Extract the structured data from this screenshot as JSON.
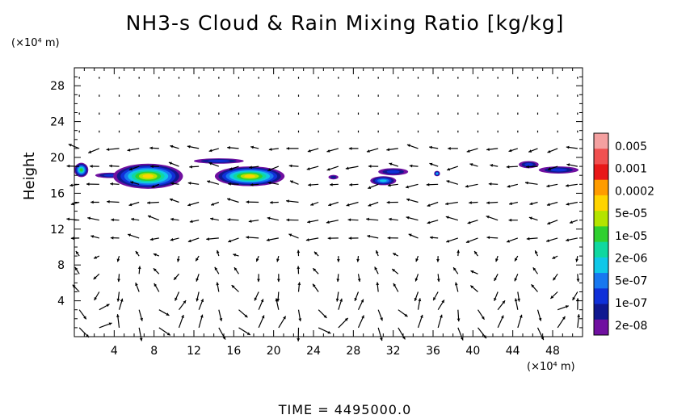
{
  "chart_data": {
    "type": "heatmap",
    "title": "NH3-s Cloud & Rain Mixing Ratio [kg/kg]",
    "ylabel": "Height",
    "y_unit": "(×10⁴ m)",
    "x_unit": "(×10⁴ m)",
    "xlim": [
      0,
      51
    ],
    "ylim": [
      0,
      30
    ],
    "x_ticks": [
      4,
      8,
      12,
      16,
      20,
      24,
      28,
      32,
      36,
      40,
      44,
      48
    ],
    "y_ticks": [
      4,
      8,
      12,
      16,
      20,
      24,
      28
    ],
    "colorbar": {
      "labels": [
        "0.005",
        "0.001",
        "0.0002",
        "5e-05",
        "1e-05",
        "2e-06",
        "5e-07",
        "1e-07",
        "2e-08"
      ],
      "colors": [
        "#f4a0a0",
        "#f05050",
        "#e81818",
        "#ff9c00",
        "#ffd400",
        "#b4e400",
        "#30d030",
        "#10d8a0",
        "#10c8e8",
        "#1878f0",
        "#1030d8",
        "#101890",
        "#7010a0"
      ]
    },
    "cloud_patches": [
      {
        "x_center": 0.7,
        "y_center": 18.6,
        "width": 1.4,
        "height": 1.6,
        "peak": "1e-05"
      },
      {
        "x_center": 3.6,
        "y_center": 18.0,
        "width": 3.0,
        "height": 0.6,
        "peak": "1e-07"
      },
      {
        "x_center": 7.4,
        "y_center": 17.9,
        "width": 7.0,
        "height": 2.8,
        "peak": "5e-05"
      },
      {
        "x_center": 14.5,
        "y_center": 19.6,
        "width": 5.0,
        "height": 0.6,
        "peak": "1e-07"
      },
      {
        "x_center": 17.6,
        "y_center": 17.9,
        "width": 7.0,
        "height": 2.2,
        "peak": "5e-05"
      },
      {
        "x_center": 26.0,
        "y_center": 17.8,
        "width": 1.0,
        "height": 0.5,
        "peak": "2e-08"
      },
      {
        "x_center": 31.0,
        "y_center": 17.4,
        "width": 2.6,
        "height": 1.0,
        "peak": "5e-07"
      },
      {
        "x_center": 32.0,
        "y_center": 18.4,
        "width": 3.0,
        "height": 0.8,
        "peak": "1e-07"
      },
      {
        "x_center": 36.4,
        "y_center": 18.2,
        "width": 0.6,
        "height": 0.6,
        "peak": "5e-07"
      },
      {
        "x_center": 45.6,
        "y_center": 19.2,
        "width": 2.0,
        "height": 0.8,
        "peak": "1e-07"
      },
      {
        "x_center": 48.6,
        "y_center": 18.6,
        "width": 4.0,
        "height": 0.8,
        "peak": "1e-07"
      }
    ],
    "vector_field": "wind vectors: strong circulation cells below 10×10⁴ m, weak flow above 22×10⁴ m"
  },
  "footer": {
    "time_label": "TIME = 4495000.0"
  }
}
